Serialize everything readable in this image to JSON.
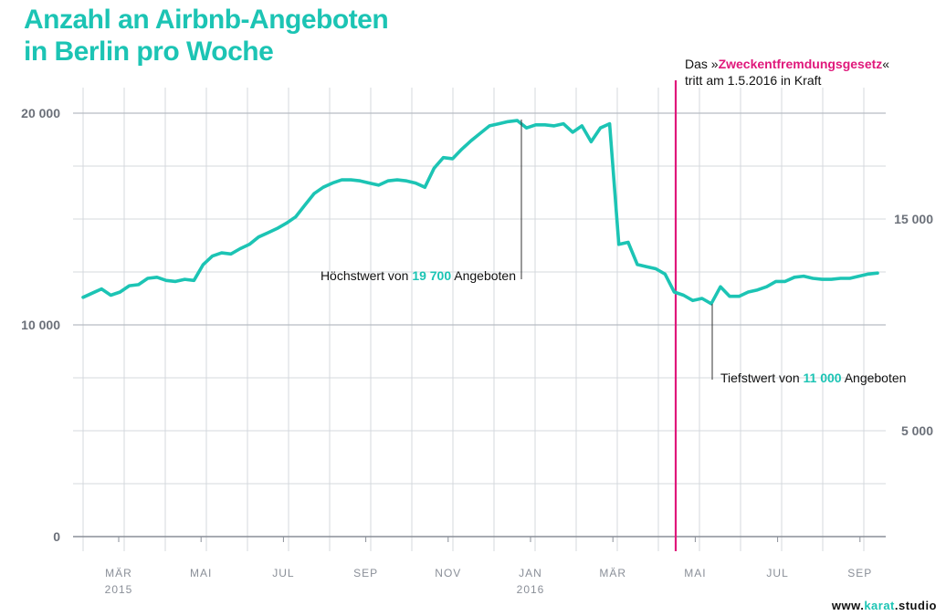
{
  "chart_data": {
    "type": "line",
    "title_line1": "Anzahl an Airbnb-Angeboten",
    "title_line2": "in Berlin pro Woche",
    "xlabel": "",
    "ylabel": "",
    "left_axis": {
      "ylim": [
        0,
        20000
      ],
      "ticks": [
        "0",
        "10 000",
        "20 000"
      ],
      "tick_values": [
        0,
        10000,
        20000
      ]
    },
    "right_axis": {
      "ticks": [
        "5 000",
        "15 000"
      ],
      "tick_values": [
        5000,
        15000
      ]
    },
    "grid": true,
    "x_month_ticks": [
      {
        "label": "MÄR",
        "year": "2015"
      },
      {
        "label": "MAI",
        "year": ""
      },
      {
        "label": "JUL",
        "year": ""
      },
      {
        "label": "SEP",
        "year": ""
      },
      {
        "label": "NOV",
        "year": ""
      },
      {
        "label": "JAN",
        "year": "2016"
      },
      {
        "label": "MÄR",
        "year": ""
      },
      {
        "label": "MAI",
        "year": ""
      },
      {
        "label": "JUL",
        "year": ""
      },
      {
        "label": "SEP",
        "year": ""
      }
    ],
    "series": [
      {
        "color": "#1cc4b4",
        "values": [
          11300,
          11500,
          11700,
          11400,
          11550,
          11850,
          11900,
          12200,
          12250,
          12100,
          12050,
          12150,
          12100,
          12850,
          13250,
          13400,
          13350,
          13600,
          13800,
          14150,
          14350,
          14550,
          14800,
          15100,
          15650,
          16200,
          16500,
          16700,
          16850,
          16850,
          16800,
          16700,
          16600,
          16800,
          16850,
          16800,
          16700,
          16500,
          17400,
          17900,
          17850,
          18300,
          18700,
          19050,
          19400,
          19500,
          19600,
          19650,
          19300,
          19450,
          19450,
          19400,
          19500,
          19100,
          19400,
          18650,
          19300,
          19500,
          13800,
          13900,
          12850,
          12750,
          12650,
          12400,
          11550,
          11400,
          11150,
          11250,
          11000,
          11800,
          11350,
          11350,
          11550,
          11650,
          11800,
          12050,
          12050,
          12250,
          12300,
          12200,
          12150,
          12150,
          12200,
          12200,
          12300,
          12400,
          12450
        ]
      }
    ],
    "annotations": {
      "policy_line_color": "#e0187b",
      "policy_text_1a": "Das »",
      "policy_text_1b": "Zweckentfremdungsgesetz",
      "policy_text_1c": "«",
      "policy_text_2": "tritt am 1.5.2016 in Kraft",
      "max_text_a": "Höchstwert von ",
      "max_text_b": "19 700",
      "max_text_c": " Angeboten",
      "min_text_a": "Tiefstwert von ",
      "min_text_b": "11 000",
      "min_text_c": " Angeboten"
    }
  },
  "credit": {
    "prefix": "www.",
    "accent": "karat",
    "suffix": ".studio"
  },
  "colors": {
    "accent": "#1cc4b4",
    "highlight": "#e0187b",
    "axis": "#8a8f98",
    "grid": "#d4d8dd"
  }
}
